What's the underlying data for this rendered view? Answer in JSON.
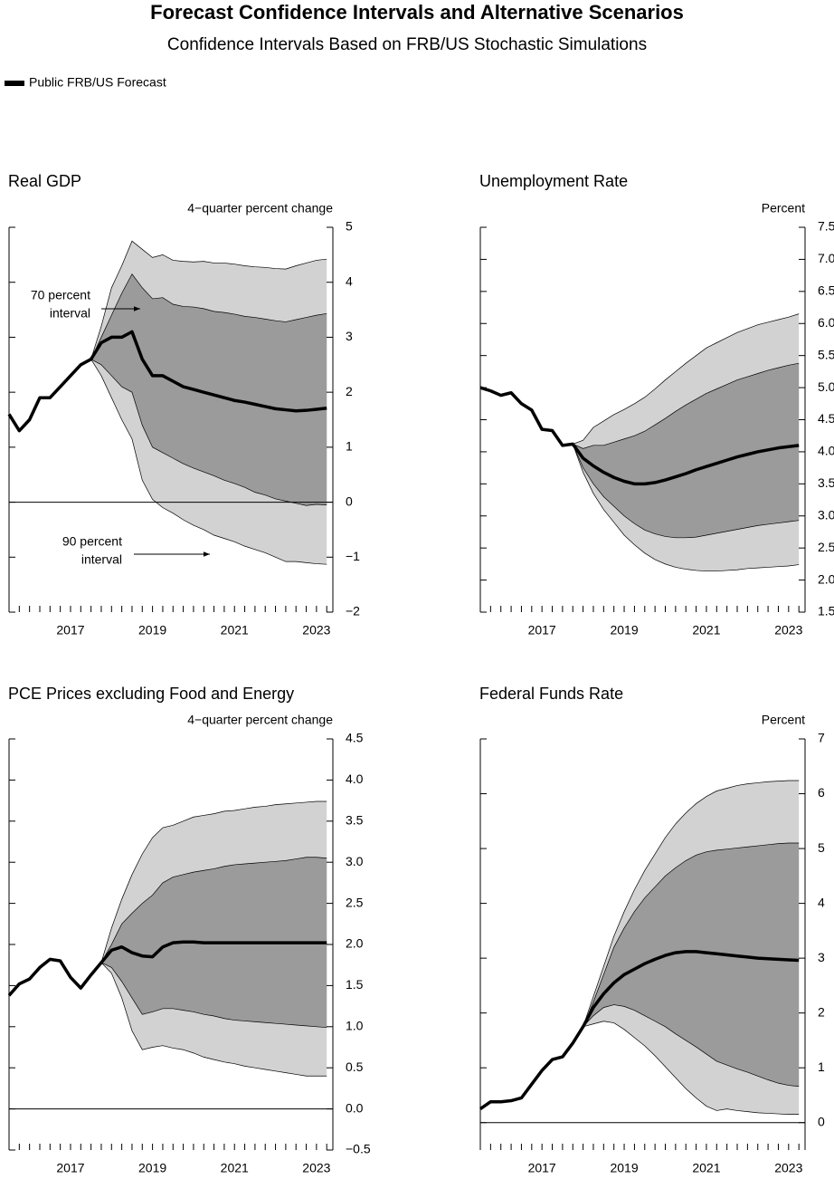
{
  "title": "Forecast Confidence Intervals and Alternative Scenarios",
  "subtitle": "Confidence Intervals Based on FRB/US Stochastic Simulations",
  "legend": {
    "name": "Public FRB/US Forecast",
    "color": "#000000"
  },
  "chart_data": [
    {
      "type": "line",
      "title": "Real GDP",
      "y_label": "4−quarter percent change",
      "x": [
        2016,
        2016.25,
        2016.5,
        2016.75,
        2017,
        2017.25,
        2017.5,
        2017.75,
        2018,
        2018.25,
        2018.5,
        2018.75,
        2019,
        2019.25,
        2019.5,
        2019.75,
        2020,
        2020.25,
        2020.5,
        2020.75,
        2021,
        2021.25,
        2021.5,
        2021.75,
        2022,
        2022.25,
        2022.5,
        2022.75,
        2023,
        2023.25,
        2023.5,
        2023.75
      ],
      "xlim": [
        2016,
        2023.9
      ],
      "xticks": [
        {
          "value": 2017.5,
          "label": "2017"
        },
        {
          "value": 2019.5,
          "label": "2019"
        },
        {
          "value": 2021.5,
          "label": "2021"
        },
        {
          "value": 2023.5,
          "label": "2023"
        }
      ],
      "ylim": [
        -2,
        5
      ],
      "yticks": [
        {
          "value": -2,
          "label": "−2"
        },
        {
          "value": -1,
          "label": "−1"
        },
        0,
        1,
        2,
        3,
        4,
        5
      ],
      "zero_line": true,
      "bands": [
        {
          "color": "#d2d2d2",
          "upper": [
            null,
            null,
            null,
            null,
            null,
            null,
            null,
            null,
            2.6,
            3.2,
            3.9,
            4.3,
            4.75,
            4.6,
            4.45,
            4.5,
            4.4,
            4.38,
            4.37,
            4.38,
            4.35,
            4.35,
            4.33,
            4.3,
            4.28,
            4.27,
            4.25,
            4.24,
            4.3,
            4.35,
            4.4,
            4.42
          ],
          "lower": [
            null,
            null,
            null,
            null,
            null,
            null,
            null,
            null,
            2.6,
            2.3,
            1.9,
            1.5,
            1.15,
            0.4,
            0.05,
            -0.1,
            -0.2,
            -0.32,
            -0.42,
            -0.5,
            -0.6,
            -0.66,
            -0.72,
            -0.8,
            -0.86,
            -0.92,
            -1.0,
            -1.08,
            -1.08,
            -1.1,
            -1.12,
            -1.13
          ]
        },
        {
          "color": "#9b9b9b",
          "upper": [
            null,
            null,
            null,
            null,
            null,
            null,
            null,
            null,
            2.6,
            3.0,
            3.4,
            3.8,
            4.15,
            3.9,
            3.7,
            3.72,
            3.6,
            3.56,
            3.55,
            3.52,
            3.47,
            3.45,
            3.42,
            3.38,
            3.36,
            3.33,
            3.3,
            3.28,
            3.32,
            3.36,
            3.4,
            3.43
          ],
          "lower": [
            null,
            null,
            null,
            null,
            null,
            null,
            null,
            null,
            2.6,
            2.5,
            2.3,
            2.1,
            2.0,
            1.4,
            1.0,
            0.9,
            0.8,
            0.7,
            0.62,
            0.55,
            0.48,
            0.4,
            0.34,
            0.27,
            0.18,
            0.13,
            0.06,
            0.02,
            -0.02,
            -0.06,
            -0.04,
            -0.05
          ]
        }
      ],
      "series": [
        {
          "color": "#000000",
          "values": [
            1.6,
            1.3,
            1.5,
            1.9,
            1.9,
            2.1,
            2.3,
            2.5,
            2.6,
            2.9,
            3.0,
            3.0,
            3.1,
            2.6,
            2.3,
            2.3,
            2.2,
            2.1,
            2.05,
            2.0,
            1.95,
            1.9,
            1.85,
            1.82,
            1.78,
            1.74,
            1.7,
            1.68,
            1.66,
            1.67,
            1.69,
            1.71
          ]
        }
      ],
      "annotations": [
        {
          "text": [
            "70 percent",
            "interval"
          ]
        },
        {
          "text": [
            "90 percent",
            "interval"
          ]
        }
      ]
    },
    {
      "type": "line",
      "title": "Unemployment Rate",
      "y_label": "Percent",
      "x": [
        2016,
        2016.25,
        2016.5,
        2016.75,
        2017,
        2017.25,
        2017.5,
        2017.75,
        2018,
        2018.25,
        2018.5,
        2018.75,
        2019,
        2019.25,
        2019.5,
        2019.75,
        2020,
        2020.25,
        2020.5,
        2020.75,
        2021,
        2021.25,
        2021.5,
        2021.75,
        2022,
        2022.25,
        2022.5,
        2022.75,
        2023,
        2023.25,
        2023.5,
        2023.75
      ],
      "xlim": [
        2016,
        2023.9
      ],
      "xticks": [
        {
          "value": 2017.5,
          "label": "2017"
        },
        {
          "value": 2019.5,
          "label": "2019"
        },
        {
          "value": 2021.5,
          "label": "2021"
        },
        {
          "value": 2023.5,
          "label": "2023"
        }
      ],
      "ylim": [
        1.5,
        7.5
      ],
      "yticks": [
        1.5,
        {
          "value": 2,
          "label": "2.0"
        },
        2.5,
        {
          "value": 3,
          "label": "3.0"
        },
        3.5,
        {
          "value": 4,
          "label": "4.0"
        },
        4.5,
        {
          "value": 5,
          "label": "5.0"
        },
        5.5,
        {
          "value": 6,
          "label": "6.0"
        },
        6.5,
        {
          "value": 7,
          "label": "7.0"
        },
        7.5
      ],
      "zero_line": false,
      "bands": [
        {
          "color": "#d2d2d2",
          "upper": [
            null,
            null,
            null,
            null,
            null,
            null,
            null,
            null,
            null,
            4.12,
            4.18,
            4.38,
            4.48,
            4.58,
            4.66,
            4.75,
            4.85,
            4.98,
            5.12,
            5.25,
            5.38,
            5.5,
            5.62,
            5.7,
            5.78,
            5.86,
            5.92,
            5.98,
            6.02,
            6.06,
            6.1,
            6.15
          ],
          "lower": [
            null,
            null,
            null,
            null,
            null,
            null,
            null,
            null,
            null,
            4.12,
            3.68,
            3.35,
            3.1,
            2.9,
            2.7,
            2.55,
            2.42,
            2.32,
            2.25,
            2.2,
            2.17,
            2.15,
            2.14,
            2.14,
            2.15,
            2.16,
            2.18,
            2.19,
            2.2,
            2.21,
            2.22,
            2.24
          ]
        },
        {
          "color": "#9b9b9b",
          "upper": [
            null,
            null,
            null,
            null,
            null,
            null,
            null,
            null,
            null,
            4.12,
            4.05,
            4.1,
            4.1,
            4.15,
            4.2,
            4.25,
            4.32,
            4.42,
            4.52,
            4.63,
            4.73,
            4.82,
            4.91,
            4.98,
            5.05,
            5.12,
            5.17,
            5.22,
            5.27,
            5.31,
            5.35,
            5.38
          ],
          "lower": [
            null,
            null,
            null,
            null,
            null,
            null,
            null,
            null,
            null,
            4.12,
            3.75,
            3.5,
            3.3,
            3.15,
            3.0,
            2.88,
            2.78,
            2.72,
            2.68,
            2.66,
            2.66,
            2.67,
            2.7,
            2.73,
            2.76,
            2.79,
            2.82,
            2.85,
            2.87,
            2.89,
            2.91,
            2.93
          ]
        }
      ],
      "series": [
        {
          "color": "#000000",
          "values": [
            5.0,
            4.95,
            4.88,
            4.92,
            4.75,
            4.65,
            4.35,
            4.33,
            4.1,
            4.12,
            3.9,
            3.78,
            3.68,
            3.6,
            3.54,
            3.5,
            3.5,
            3.52,
            3.56,
            3.61,
            3.66,
            3.72,
            3.77,
            3.82,
            3.87,
            3.92,
            3.96,
            4.0,
            4.03,
            4.06,
            4.08,
            4.1
          ]
        }
      ]
    },
    {
      "type": "line",
      "title": "PCE Prices excluding Food and Energy",
      "y_label": "4−quarter percent change",
      "x": [
        2016,
        2016.25,
        2016.5,
        2016.75,
        2017,
        2017.25,
        2017.5,
        2017.75,
        2018,
        2018.25,
        2018.5,
        2018.75,
        2019,
        2019.25,
        2019.5,
        2019.75,
        2020,
        2020.25,
        2020.5,
        2020.75,
        2021,
        2021.25,
        2021.5,
        2021.75,
        2022,
        2022.25,
        2022.5,
        2022.75,
        2023,
        2023.25,
        2023.5,
        2023.75
      ],
      "xlim": [
        2016,
        2023.9
      ],
      "xticks": [
        {
          "value": 2017.5,
          "label": "2017"
        },
        {
          "value": 2019.5,
          "label": "2019"
        },
        {
          "value": 2021.5,
          "label": "2021"
        },
        {
          "value": 2023.5,
          "label": "2023"
        }
      ],
      "ylim": [
        -0.5,
        4.5
      ],
      "yticks": [
        {
          "value": -0.5,
          "label": "−0.5"
        },
        {
          "value": 0,
          "label": "0.0"
        },
        0.5,
        {
          "value": 1,
          "label": "1.0"
        },
        1.5,
        {
          "value": 2,
          "label": "2.0"
        },
        2.5,
        {
          "value": 3,
          "label": "3.0"
        },
        3.5,
        {
          "value": 4,
          "label": "4.0"
        },
        4.5
      ],
      "zero_line": true,
      "bands": [
        {
          "color": "#d2d2d2",
          "upper": [
            null,
            null,
            null,
            null,
            null,
            null,
            null,
            null,
            null,
            1.78,
            2.2,
            2.55,
            2.85,
            3.1,
            3.3,
            3.42,
            3.45,
            3.5,
            3.55,
            3.57,
            3.59,
            3.62,
            3.63,
            3.65,
            3.67,
            3.68,
            3.7,
            3.71,
            3.72,
            3.73,
            3.74,
            3.74
          ],
          "lower": [
            null,
            null,
            null,
            null,
            null,
            null,
            null,
            null,
            null,
            1.78,
            1.65,
            1.35,
            0.95,
            0.72,
            0.75,
            0.77,
            0.74,
            0.72,
            0.68,
            0.63,
            0.6,
            0.57,
            0.55,
            0.52,
            0.5,
            0.48,
            0.46,
            0.44,
            0.42,
            0.4,
            0.4,
            0.4
          ]
        },
        {
          "color": "#9b9b9b",
          "upper": [
            null,
            null,
            null,
            null,
            null,
            null,
            null,
            null,
            null,
            1.78,
            2.0,
            2.25,
            2.38,
            2.5,
            2.6,
            2.75,
            2.82,
            2.85,
            2.88,
            2.9,
            2.92,
            2.95,
            2.97,
            2.98,
            2.99,
            3.0,
            3.01,
            3.02,
            3.04,
            3.06,
            3.06,
            3.05
          ],
          "lower": [
            null,
            null,
            null,
            null,
            null,
            null,
            null,
            null,
            null,
            1.78,
            1.72,
            1.55,
            1.35,
            1.15,
            1.18,
            1.22,
            1.22,
            1.2,
            1.18,
            1.15,
            1.13,
            1.1,
            1.08,
            1.07,
            1.06,
            1.05,
            1.04,
            1.03,
            1.02,
            1.01,
            1.0,
            0.99
          ]
        }
      ],
      "series": [
        {
          "color": "#000000",
          "values": [
            1.38,
            1.52,
            1.58,
            1.72,
            1.82,
            1.8,
            1.6,
            1.47,
            1.63,
            1.78,
            1.93,
            1.97,
            1.9,
            1.86,
            1.85,
            1.97,
            2.02,
            2.03,
            2.03,
            2.02,
            2.02,
            2.02,
            2.02,
            2.02,
            2.02,
            2.02,
            2.02,
            2.02,
            2.02,
            2.02,
            2.02,
            2.02
          ]
        }
      ]
    },
    {
      "type": "line",
      "title": "Federal Funds Rate",
      "y_label": "Percent",
      "x": [
        2016,
        2016.25,
        2016.5,
        2016.75,
        2017,
        2017.25,
        2017.5,
        2017.75,
        2018,
        2018.25,
        2018.5,
        2018.75,
        2019,
        2019.25,
        2019.5,
        2019.75,
        2020,
        2020.25,
        2020.5,
        2020.75,
        2021,
        2021.25,
        2021.5,
        2021.75,
        2022,
        2022.25,
        2022.5,
        2022.75,
        2023,
        2023.25,
        2023.5,
        2023.75
      ],
      "xlim": [
        2016,
        2023.9
      ],
      "xticks": [
        {
          "value": 2017.5,
          "label": "2017"
        },
        {
          "value": 2019.5,
          "label": "2019"
        },
        {
          "value": 2021.5,
          "label": "2021"
        },
        {
          "value": 2023.5,
          "label": "2023"
        }
      ],
      "ylim": [
        -0.5,
        7
      ],
      "yticks": [
        0,
        1,
        2,
        3,
        4,
        5,
        6,
        7
      ],
      "zero_line": true,
      "bands": [
        {
          "color": "#d2d2d2",
          "upper": [
            null,
            null,
            null,
            null,
            null,
            null,
            null,
            null,
            null,
            null,
            1.75,
            2.3,
            2.85,
            3.4,
            3.85,
            4.25,
            4.6,
            4.9,
            5.2,
            5.45,
            5.65,
            5.82,
            5.95,
            6.05,
            6.1,
            6.15,
            6.18,
            6.2,
            6.22,
            6.23,
            6.24,
            6.24
          ],
          "lower": [
            null,
            null,
            null,
            null,
            null,
            null,
            null,
            null,
            null,
            null,
            1.75,
            1.8,
            1.85,
            1.82,
            1.7,
            1.55,
            1.4,
            1.22,
            1.02,
            0.82,
            0.62,
            0.45,
            0.3,
            0.22,
            0.25,
            0.22,
            0.2,
            0.18,
            0.17,
            0.16,
            0.15,
            0.15
          ]
        },
        {
          "color": "#9b9b9b",
          "upper": [
            null,
            null,
            null,
            null,
            null,
            null,
            null,
            null,
            null,
            null,
            1.75,
            2.2,
            2.7,
            3.2,
            3.55,
            3.85,
            4.1,
            4.3,
            4.5,
            4.65,
            4.78,
            4.88,
            4.94,
            4.97,
            4.99,
            5.01,
            5.03,
            5.05,
            5.07,
            5.09,
            5.1,
            5.1
          ],
          "lower": [
            null,
            null,
            null,
            null,
            null,
            null,
            null,
            null,
            null,
            null,
            1.75,
            1.95,
            2.1,
            2.15,
            2.12,
            2.05,
            1.95,
            1.85,
            1.75,
            1.62,
            1.5,
            1.38,
            1.25,
            1.12,
            1.05,
            0.98,
            0.92,
            0.85,
            0.78,
            0.72,
            0.68,
            0.66
          ]
        }
      ],
      "series": [
        {
          "color": "#000000",
          "values": [
            0.25,
            0.38,
            0.38,
            0.4,
            0.45,
            0.7,
            0.95,
            1.15,
            1.2,
            1.45,
            1.75,
            2.1,
            2.35,
            2.55,
            2.7,
            2.8,
            2.9,
            2.98,
            3.05,
            3.1,
            3.12,
            3.12,
            3.1,
            3.08,
            3.06,
            3.04,
            3.02,
            3.0,
            2.99,
            2.98,
            2.97,
            2.96
          ]
        }
      ]
    }
  ]
}
